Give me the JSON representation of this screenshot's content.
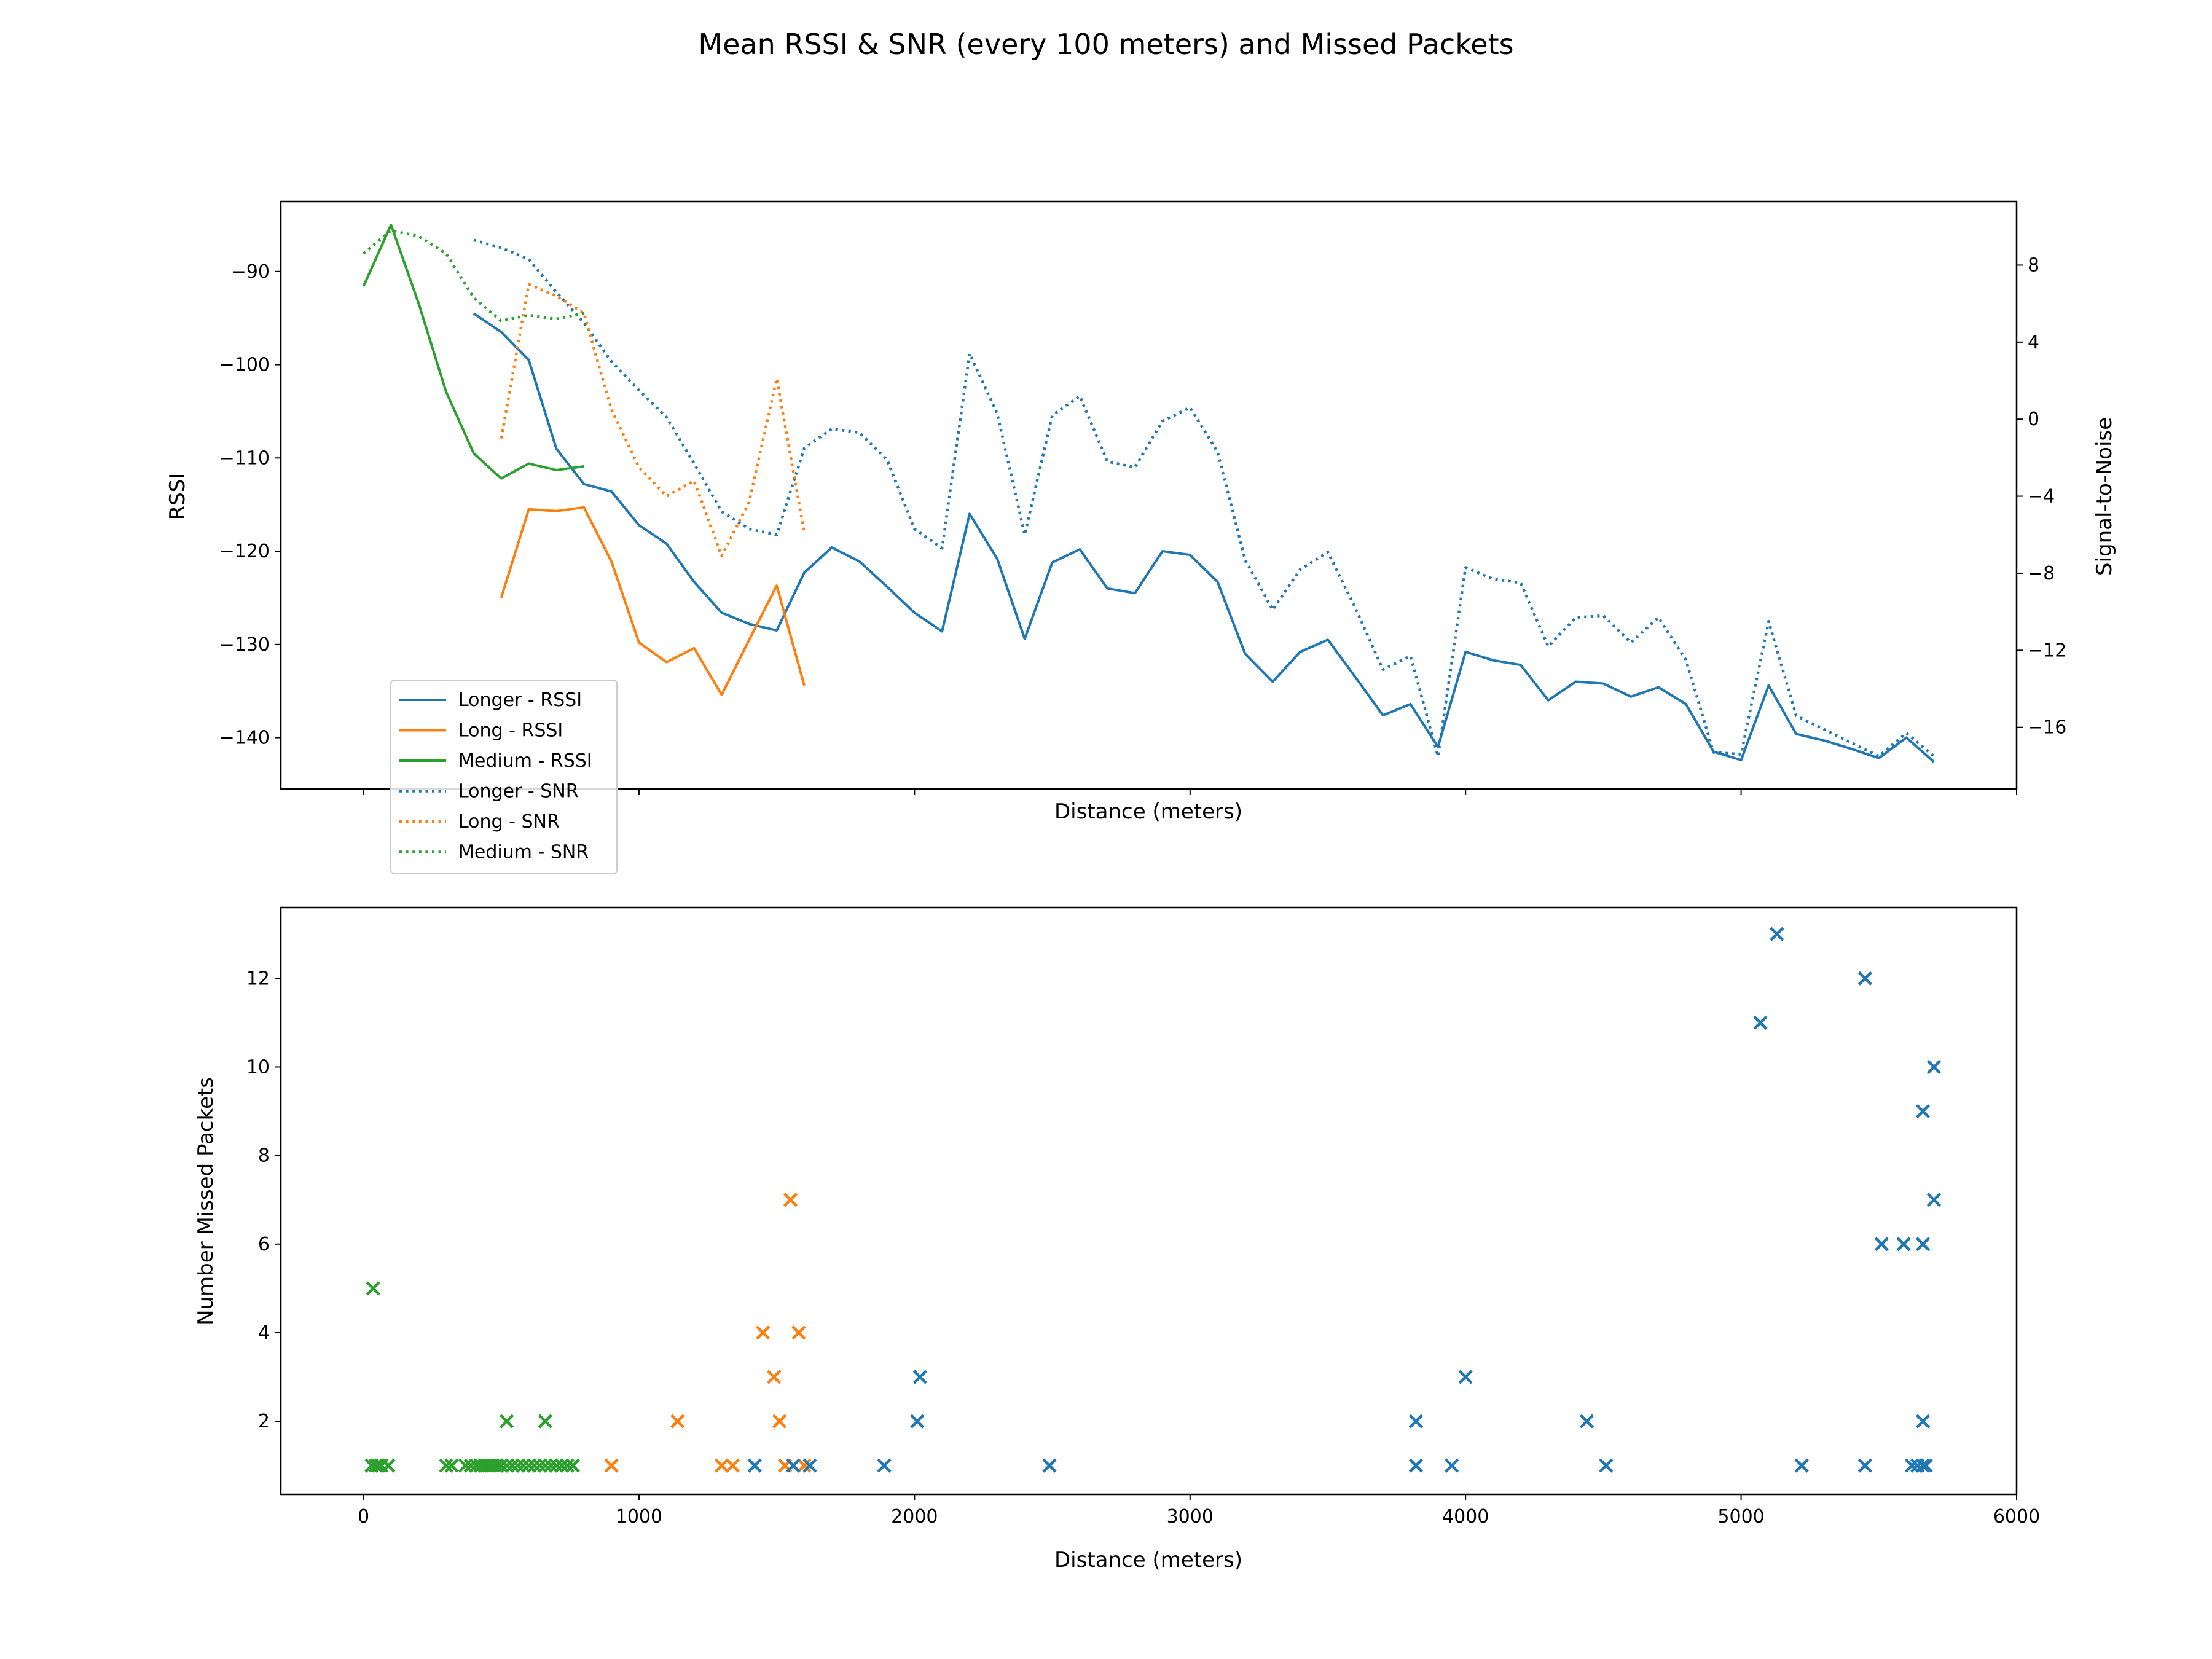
{
  "figure_title": "Mean RSSI & SNR (every 100 meters) and Missed Packets",
  "colors": {
    "longer": "#1f77b4",
    "long": "#ff7f0e",
    "medium": "#2ca02c"
  },
  "chart_data": [
    {
      "type": "line",
      "title": "",
      "xlabel": "Distance (meters)",
      "ylabel": "RSSI",
      "y2label": "Signal-to-Noise",
      "xlim": [
        -300,
        6000
      ],
      "ylim": [
        -145.5,
        -82.5
      ],
      "y2lim": [
        -19.2,
        11.3
      ],
      "xticks": [
        0,
        1000,
        2000,
        3000,
        4000,
        5000,
        6000
      ],
      "yticks": [
        -90,
        -100,
        -110,
        -120,
        -130,
        -140
      ],
      "ytick_labels": [
        "−90",
        "−100",
        "−110",
        "−120",
        "−130",
        "−140"
      ],
      "y2ticks": [
        8,
        4,
        0,
        -4,
        -8,
        -12,
        -16
      ],
      "y2tick_labels": [
        "8",
        "4",
        "0",
        "−4",
        "−8",
        "−12",
        "−16"
      ],
      "legend_position": "bottom-left",
      "series": [
        {
          "name": "Longer - RSSI",
          "color_key": "longer",
          "style": "solid",
          "axis": "left",
          "x": [
            400,
            500,
            600,
            700,
            800,
            900,
            1000,
            1100,
            1200,
            1300,
            1400,
            1500,
            1600,
            1700,
            1800,
            1900,
            2000,
            2100,
            2200,
            2300,
            2400,
            2500,
            2600,
            2700,
            2800,
            2900,
            3000,
            3100,
            3200,
            3300,
            3400,
            3500,
            3600,
            3700,
            3800,
            3900,
            4000,
            4100,
            4200,
            4300,
            4400,
            4500,
            4600,
            4700,
            4800,
            4900,
            5000,
            5100,
            5200,
            5300,
            5400,
            5500,
            5600,
            5700
          ],
          "y": [
            -94.5,
            -96.5,
            -99.5,
            -109,
            -112.8,
            -113.6,
            -117.2,
            -119.2,
            -123.3,
            -126.6,
            -127.8,
            -128.5,
            -122.3,
            -119.6,
            -121.1,
            -123.8,
            -126.6,
            -128.6,
            -116,
            -120.8,
            -129.4,
            -121.2,
            -119.8,
            -124,
            -124.5,
            -120,
            -120.4,
            -123.3,
            -131,
            -134,
            -130.8,
            -129.5,
            -133.5,
            -137.6,
            -136.4,
            -141,
            -130.8,
            -131.7,
            -132.2,
            -136,
            -134,
            -134.2,
            -135.6,
            -134.6,
            -136.4,
            -141.5,
            -142.4,
            -134.4,
            -139.6,
            -140.3,
            -141.2,
            -142.2,
            -140,
            -142.6
          ]
        },
        {
          "name": "Long - RSSI",
          "color_key": "long",
          "style": "solid",
          "axis": "left",
          "x": [
            500,
            600,
            700,
            800,
            900,
            1000,
            1100,
            1200,
            1300,
            1400,
            1500,
            1600
          ],
          "y": [
            -125,
            -115.5,
            -115.7,
            -115.3,
            -121.1,
            -129.8,
            -131.9,
            -130.4,
            -135.4,
            -129.5,
            -123.7,
            -134.4
          ]
        },
        {
          "name": "Medium - RSSI",
          "color_key": "medium",
          "style": "solid",
          "axis": "left",
          "x": [
            0,
            100,
            200,
            300,
            400,
            500,
            600,
            700,
            800
          ],
          "y": [
            -91.6,
            -85,
            -93.4,
            -102.9,
            -109.5,
            -112.2,
            -110.6,
            -111.3,
            -110.9
          ]
        },
        {
          "name": "Longer - SNR",
          "color_key": "longer",
          "style": "dotted",
          "axis": "right",
          "x": [
            400,
            500,
            600,
            700,
            800,
            900,
            1000,
            1100,
            1200,
            1300,
            1400,
            1500,
            1600,
            1700,
            1800,
            1900,
            2000,
            2100,
            2200,
            2300,
            2400,
            2500,
            2600,
            2700,
            2800,
            2900,
            3000,
            3100,
            3200,
            3300,
            3400,
            3500,
            3600,
            3700,
            3800,
            3900,
            4000,
            4100,
            4200,
            4300,
            4400,
            4500,
            4600,
            4700,
            4800,
            4900,
            5000,
            5100,
            5200,
            5300,
            5400,
            5500,
            5600,
            5700
          ],
          "y": [
            9.3,
            8.9,
            8.3,
            6.6,
            5,
            3,
            1.5,
            0.1,
            -2.3,
            -4.8,
            -5.7,
            -6,
            -1.5,
            -0.5,
            -0.7,
            -2.1,
            -5.7,
            -6.7,
            3.4,
            0.3,
            -6,
            0.2,
            1.2,
            -2.2,
            -2.5,
            -0.1,
            0.6,
            -1.7,
            -7.3,
            -9.9,
            -7.8,
            -6.9,
            -9.8,
            -13,
            -12.3,
            -17.5,
            -7.7,
            -8.3,
            -8.5,
            -11.8,
            -10.3,
            -10.2,
            -11.6,
            -10.3,
            -12.5,
            -17.3,
            -17.4,
            -10.5,
            -15.4,
            -16.1,
            -16.8,
            -17.5,
            -16.3,
            -17.5
          ]
        },
        {
          "name": "Long - SNR",
          "color_key": "long",
          "style": "dotted",
          "axis": "right",
          "x": [
            500,
            600,
            700,
            800,
            900,
            1000,
            1100,
            1200,
            1300,
            1400,
            1500,
            1600
          ],
          "y": [
            -1,
            7,
            6.4,
            5.5,
            0.5,
            -2.5,
            -4,
            -3.2,
            -7.1,
            -4.3,
            2.1,
            -5.9
          ]
        },
        {
          "name": "Medium - SNR",
          "color_key": "medium",
          "style": "dotted",
          "axis": "right",
          "x": [
            0,
            100,
            200,
            300,
            400,
            500,
            600,
            700,
            800
          ],
          "y": [
            8.6,
            9.8,
            9.5,
            8.6,
            6.3,
            5.1,
            5.4,
            5.2,
            5.5
          ]
        }
      ]
    },
    {
      "type": "scatter",
      "title": "",
      "xlabel": "Distance (meters)",
      "ylabel": "Number Missed Packets",
      "xlim": [
        -300,
        6000
      ],
      "ylim": [
        0.35,
        13.6
      ],
      "xticks": [
        0,
        1000,
        2000,
        3000,
        4000,
        5000,
        6000
      ],
      "yticks": [
        2,
        4,
        6,
        8,
        10,
        12
      ],
      "marker": "x",
      "series": [
        {
          "name": "Medium",
          "color_key": "medium",
          "x": [
            30,
            45,
            55,
            65,
            90,
            300,
            320,
            370,
            390,
            410,
            425,
            440,
            455,
            470,
            485,
            500,
            520,
            540,
            560,
            580,
            600,
            620,
            640,
            660,
            680,
            700,
            720,
            740,
            760,
            35,
            520,
            660
          ],
          "y": [
            1,
            1,
            1,
            1,
            1,
            1,
            1,
            1,
            1,
            1,
            1,
            1,
            1,
            1,
            1,
            1,
            1,
            1,
            1,
            1,
            1,
            1,
            1,
            1,
            1,
            1,
            1,
            1,
            1,
            5,
            2,
            2
          ]
        },
        {
          "name": "Long",
          "color_key": "long",
          "x": [
            900,
            1140,
            1300,
            1340,
            1450,
            1490,
            1510,
            1530,
            1550,
            1580,
            1600
          ],
          "y": [
            1,
            2,
            1,
            1,
            4,
            3,
            2,
            1,
            7,
            4,
            1
          ]
        },
        {
          "name": "Longer",
          "color_key": "longer",
          "x": [
            1420,
            1560,
            1620,
            1890,
            2010,
            2020,
            2490,
            3820,
            3820,
            3950,
            4000,
            4440,
            4510,
            5070,
            5130,
            5220,
            5450,
            5450,
            5510,
            5590,
            5620,
            5640,
            5660,
            5660,
            5660,
            5660,
            5670,
            5700,
            5700
          ],
          "y": [
            1,
            1,
            1,
            1,
            2,
            3,
            1,
            1,
            2,
            1,
            3,
            2,
            1,
            11,
            13,
            1,
            12,
            1,
            6,
            6,
            1,
            1,
            1,
            6,
            9,
            2,
            1,
            10,
            7
          ]
        }
      ]
    }
  ]
}
